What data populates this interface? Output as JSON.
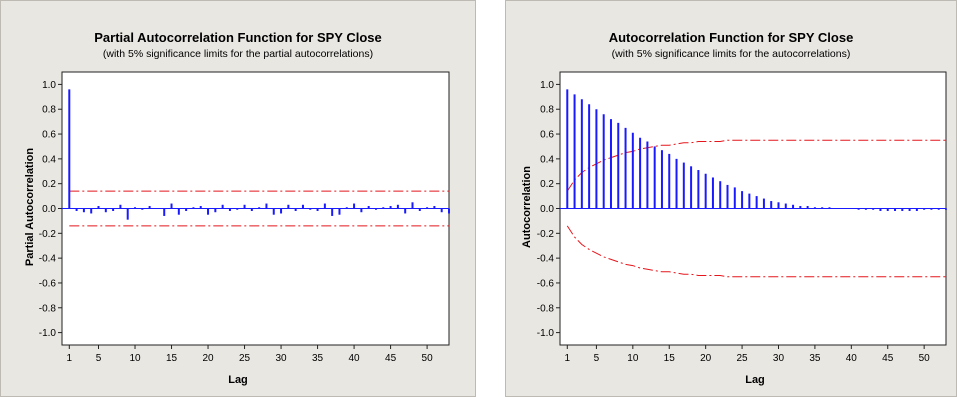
{
  "chart_data": [
    {
      "type": "bar",
      "title": "Partial Autocorrelation Function for SPY Close",
      "subtitle": "(with 5% significance limits for the partial autocorrelations)",
      "xlabel": "Lag",
      "ylabel": "Partial Autocorrelation",
      "xlim": [
        0,
        53
      ],
      "ylim": [
        -1.1,
        1.1
      ],
      "xticks": [
        1,
        5,
        10,
        15,
        20,
        25,
        30,
        35,
        40,
        45,
        50
      ],
      "xtick_labels": [
        "1",
        "5",
        "10",
        "15",
        "20",
        "25",
        "30",
        "35",
        "40",
        "45",
        "50"
      ],
      "yticks": [
        1.0,
        0.8,
        0.6,
        0.4,
        0.2,
        0.0,
        -0.2,
        -0.4,
        -0.6,
        -0.8,
        -1.0
      ],
      "ytick_labels": [
        "1.0",
        "0.8",
        "0.6",
        "0.4",
        "0.2",
        "0.0",
        "-0.2",
        "-0.4",
        "-0.6",
        "-0.8",
        "-1.0"
      ],
      "lags": [
        1,
        2,
        3,
        4,
        5,
        6,
        7,
        8,
        9,
        10,
        11,
        12,
        13,
        14,
        15,
        16,
        17,
        18,
        19,
        20,
        21,
        22,
        23,
        24,
        25,
        26,
        27,
        28,
        29,
        30,
        31,
        32,
        33,
        34,
        35,
        36,
        37,
        38,
        39,
        40,
        41,
        42,
        43,
        44,
        45,
        46,
        47,
        48,
        49,
        50,
        51,
        52,
        53
      ],
      "values": [
        0.96,
        -0.02,
        -0.03,
        -0.04,
        0.02,
        -0.03,
        -0.02,
        0.03,
        -0.09,
        0.01,
        -0.01,
        0.02,
        0.0,
        -0.06,
        0.04,
        -0.05,
        -0.02,
        0.01,
        0.02,
        -0.05,
        -0.03,
        0.03,
        -0.02,
        -0.01,
        0.03,
        -0.02,
        0.01,
        0.04,
        -0.05,
        -0.04,
        0.03,
        -0.02,
        0.03,
        -0.01,
        -0.02,
        0.04,
        -0.06,
        -0.05,
        0.01,
        0.04,
        -0.03,
        0.02,
        -0.01,
        0.01,
        0.02,
        0.03,
        -0.04,
        0.05,
        -0.02,
        0.01,
        0.02,
        -0.03,
        -0.04
      ],
      "significance_limits": {
        "upper": [
          0.14,
          0.14,
          0.14,
          0.14,
          0.14,
          0.14,
          0.14,
          0.14,
          0.14,
          0.14,
          0.14,
          0.14,
          0.14,
          0.14,
          0.14,
          0.14,
          0.14,
          0.14,
          0.14,
          0.14,
          0.14,
          0.14,
          0.14,
          0.14,
          0.14,
          0.14,
          0.14,
          0.14,
          0.14,
          0.14,
          0.14,
          0.14,
          0.14,
          0.14,
          0.14,
          0.14,
          0.14,
          0.14,
          0.14,
          0.14,
          0.14,
          0.14,
          0.14,
          0.14,
          0.14,
          0.14,
          0.14,
          0.14,
          0.14,
          0.14,
          0.14,
          0.14,
          0.14
        ],
        "lower": [
          -0.14,
          -0.14,
          -0.14,
          -0.14,
          -0.14,
          -0.14,
          -0.14,
          -0.14,
          -0.14,
          -0.14,
          -0.14,
          -0.14,
          -0.14,
          -0.14,
          -0.14,
          -0.14,
          -0.14,
          -0.14,
          -0.14,
          -0.14,
          -0.14,
          -0.14,
          -0.14,
          -0.14,
          -0.14,
          -0.14,
          -0.14,
          -0.14,
          -0.14,
          -0.14,
          -0.14,
          -0.14,
          -0.14,
          -0.14,
          -0.14,
          -0.14,
          -0.14,
          -0.14,
          -0.14,
          -0.14,
          -0.14,
          -0.14,
          -0.14,
          -0.14,
          -0.14,
          -0.14,
          -0.14,
          -0.14,
          -0.14,
          -0.14,
          -0.14,
          -0.14,
          -0.14
        ]
      },
      "bar_color": "#1a1aff",
      "limit_color": "#e4161c",
      "grid": false
    },
    {
      "type": "bar",
      "title": "Autocorrelation Function for SPY Close",
      "subtitle": "(with 5% significance limits for the autocorrelations)",
      "xlabel": "Lag",
      "ylabel": "Autocorrelation",
      "xlim": [
        0,
        53
      ],
      "ylim": [
        -1.1,
        1.1
      ],
      "xticks": [
        1,
        5,
        10,
        15,
        20,
        25,
        30,
        35,
        40,
        45,
        50
      ],
      "xtick_labels": [
        "1",
        "5",
        "10",
        "15",
        "20",
        "25",
        "30",
        "35",
        "40",
        "45",
        "50"
      ],
      "yticks": [
        1.0,
        0.8,
        0.6,
        0.4,
        0.2,
        0.0,
        -0.2,
        -0.4,
        -0.6,
        -0.8,
        -1.0
      ],
      "ytick_labels": [
        "1.0",
        "0.8",
        "0.6",
        "0.4",
        "0.2",
        "0.0",
        "-0.2",
        "-0.4",
        "-0.6",
        "-0.8",
        "-1.0"
      ],
      "lags": [
        1,
        2,
        3,
        4,
        5,
        6,
        7,
        8,
        9,
        10,
        11,
        12,
        13,
        14,
        15,
        16,
        17,
        18,
        19,
        20,
        21,
        22,
        23,
        24,
        25,
        26,
        27,
        28,
        29,
        30,
        31,
        32,
        33,
        34,
        35,
        36,
        37,
        38,
        39,
        40,
        41,
        42,
        43,
        44,
        45,
        46,
        47,
        48,
        49,
        50,
        51,
        52,
        53
      ],
      "values": [
        0.96,
        0.92,
        0.88,
        0.84,
        0.8,
        0.76,
        0.72,
        0.69,
        0.65,
        0.61,
        0.57,
        0.54,
        0.5,
        0.47,
        0.44,
        0.4,
        0.37,
        0.34,
        0.31,
        0.28,
        0.25,
        0.22,
        0.19,
        0.17,
        0.14,
        0.12,
        0.1,
        0.08,
        0.06,
        0.05,
        0.04,
        0.03,
        0.02,
        0.02,
        0.01,
        0.01,
        0.01,
        0.0,
        0.0,
        0.0,
        -0.01,
        -0.01,
        -0.01,
        -0.02,
        -0.02,
        -0.02,
        -0.02,
        -0.02,
        -0.02,
        -0.01,
        -0.01,
        -0.01,
        -0.01
      ],
      "significance_limits": {
        "upper": [
          0.14,
          0.23,
          0.29,
          0.33,
          0.36,
          0.39,
          0.41,
          0.43,
          0.45,
          0.46,
          0.48,
          0.49,
          0.5,
          0.51,
          0.51,
          0.52,
          0.53,
          0.53,
          0.54,
          0.54,
          0.54,
          0.54,
          0.55,
          0.55,
          0.55,
          0.55,
          0.55,
          0.55,
          0.55,
          0.55,
          0.55,
          0.55,
          0.55,
          0.55,
          0.55,
          0.55,
          0.55,
          0.55,
          0.55,
          0.55,
          0.55,
          0.55,
          0.55,
          0.55,
          0.55,
          0.55,
          0.55,
          0.55,
          0.55,
          0.55,
          0.55,
          0.55,
          0.55
        ],
        "lower": [
          -0.14,
          -0.23,
          -0.29,
          -0.33,
          -0.36,
          -0.39,
          -0.41,
          -0.43,
          -0.45,
          -0.46,
          -0.48,
          -0.49,
          -0.5,
          -0.51,
          -0.51,
          -0.52,
          -0.53,
          -0.53,
          -0.54,
          -0.54,
          -0.54,
          -0.54,
          -0.55,
          -0.55,
          -0.55,
          -0.55,
          -0.55,
          -0.55,
          -0.55,
          -0.55,
          -0.55,
          -0.55,
          -0.55,
          -0.55,
          -0.55,
          -0.55,
          -0.55,
          -0.55,
          -0.55,
          -0.55,
          -0.55,
          -0.55,
          -0.55,
          -0.55,
          -0.55,
          -0.55,
          -0.55,
          -0.55,
          -0.55,
          -0.55,
          -0.55,
          -0.55,
          -0.55
        ]
      },
      "bar_color": "#1a1aff",
      "limit_color": "#e4161c",
      "grid": false
    }
  ]
}
